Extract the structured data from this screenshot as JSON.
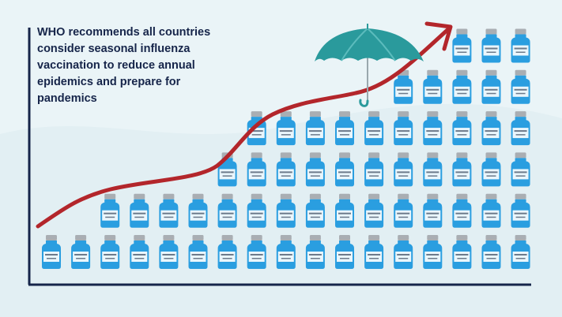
{
  "title": "WHO recommends all countries consider seasonal influenza vaccination to reduce annual epidemics and prepare for pandemics",
  "vial_columns": [
    1,
    1,
    2,
    2,
    2,
    2,
    3,
    4,
    4,
    4,
    4,
    4,
    5,
    5,
    6,
    6,
    6
  ],
  "colors": {
    "background": "#eaf4f7",
    "axis": "#16254a",
    "vial": "#2a9ee0",
    "vial_cap": "#a9aeb3",
    "trend_arrow": "#b3262b",
    "umbrella": "#2a9a9c"
  },
  "icons": [
    "umbrella-icon",
    "vaccine-vial-icon",
    "trend-arrow-icon"
  ]
}
